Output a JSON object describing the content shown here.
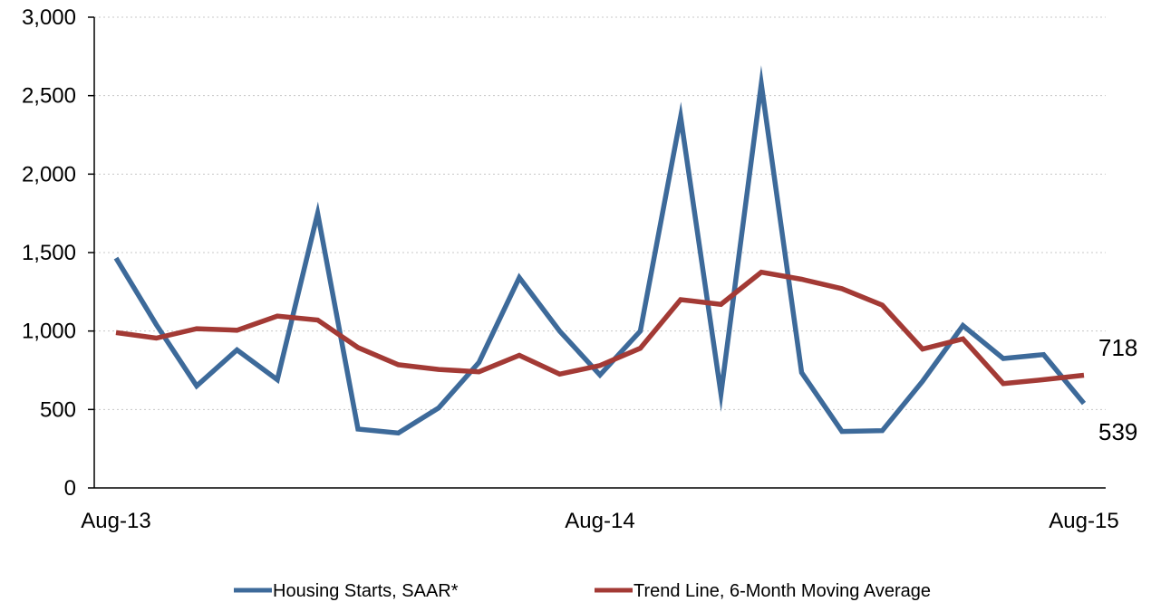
{
  "chart_data": {
    "type": "line",
    "x": [
      "Aug-13",
      "Sep-13",
      "Oct-13",
      "Nov-13",
      "Dec-13",
      "Jan-14",
      "Feb-14",
      "Mar-14",
      "Apr-14",
      "May-14",
      "Jun-14",
      "Jul-14",
      "Aug-14",
      "Sep-14",
      "Oct-14",
      "Nov-14",
      "Dec-14",
      "Jan-15",
      "Feb-15",
      "Mar-15",
      "Apr-15",
      "May-15",
      "Jun-15",
      "Jul-15",
      "Aug-15"
    ],
    "x_tick_labels": [
      "Aug-13",
      "Aug-14",
      "Aug-15"
    ],
    "y_tick_labels": [
      "0",
      "500",
      "1,000",
      "1,500",
      "2,000",
      "2,500",
      "3,000"
    ],
    "ylim": [
      0,
      3000
    ],
    "grid": "horizontal dotted",
    "legend_position": "bottom",
    "series": [
      {
        "name": "Housing Starts, SAAR*",
        "color": "#3d6a9a",
        "values": [
          1465,
          1040,
          650,
          880,
          690,
          1750,
          375,
          350,
          510,
          800,
          1340,
          1000,
          720,
          1000,
          2365,
          600,
          2575,
          735,
          360,
          365,
          680,
          1035,
          825,
          850,
          539
        ]
      },
      {
        "name": "Trend Line, 6-Month Moving Average",
        "color": "#a33a35",
        "values": [
          990,
          955,
          1015,
          1005,
          1095,
          1070,
          895,
          785,
          755,
          740,
          845,
          725,
          780,
          890,
          1200,
          1170,
          1375,
          1330,
          1270,
          1165,
          885,
          950,
          665,
          690,
          718
        ]
      }
    ],
    "end_labels": [
      "718",
      "539"
    ]
  }
}
